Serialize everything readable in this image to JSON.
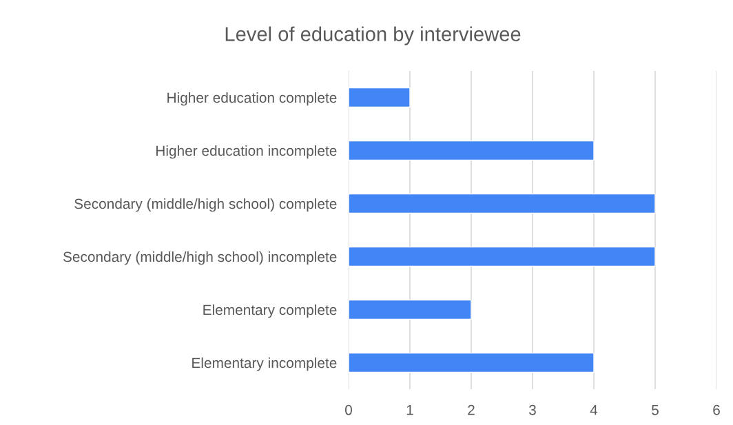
{
  "chart_data": {
    "type": "bar",
    "orientation": "horizontal",
    "title": "Level of education by interviewee",
    "categories": [
      "Higher education complete",
      "Higher education incomplete",
      "Secondary (middle/high school) complete",
      "Secondary (middle/high school) incomplete",
      "Elementary complete",
      "Elementary incomplete"
    ],
    "values": [
      1,
      4,
      5,
      5,
      2,
      4
    ],
    "color": "#4285f4",
    "xlim": [
      0,
      6
    ],
    "xticks": [
      0,
      1,
      2,
      3,
      4,
      5,
      6
    ],
    "grid": "x",
    "legend": false
  }
}
